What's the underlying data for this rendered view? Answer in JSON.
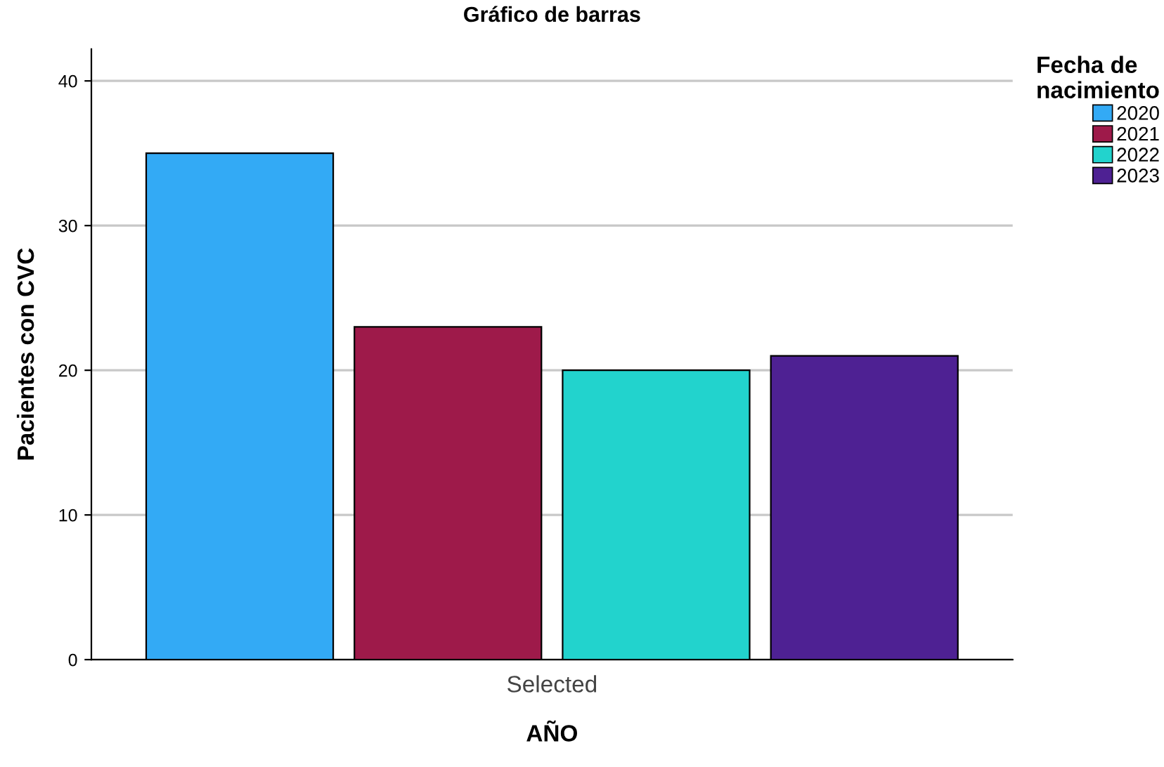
{
  "chart_data": {
    "type": "bar",
    "title": "Gráfico de barras",
    "xlabel": "AÑO",
    "ylabel": "Pacientes con CVC",
    "legend_title": "Fecha de\nnacimiento",
    "categories": [
      "Selected"
    ],
    "series": [
      {
        "name": "2020",
        "color": "#33aaf5",
        "values": [
          35
        ]
      },
      {
        "name": "2021",
        "color": "#9e1a4a",
        "values": [
          23
        ]
      },
      {
        "name": "2022",
        "color": "#22d3cd",
        "values": [
          20
        ]
      },
      {
        "name": "2023",
        "color": "#4e2193",
        "values": [
          21
        ]
      }
    ],
    "ylim": [
      0,
      42.2
    ],
    "yticks": [
      0,
      10,
      20,
      30,
      40
    ],
    "grid": "y",
    "legend": "top right"
  }
}
